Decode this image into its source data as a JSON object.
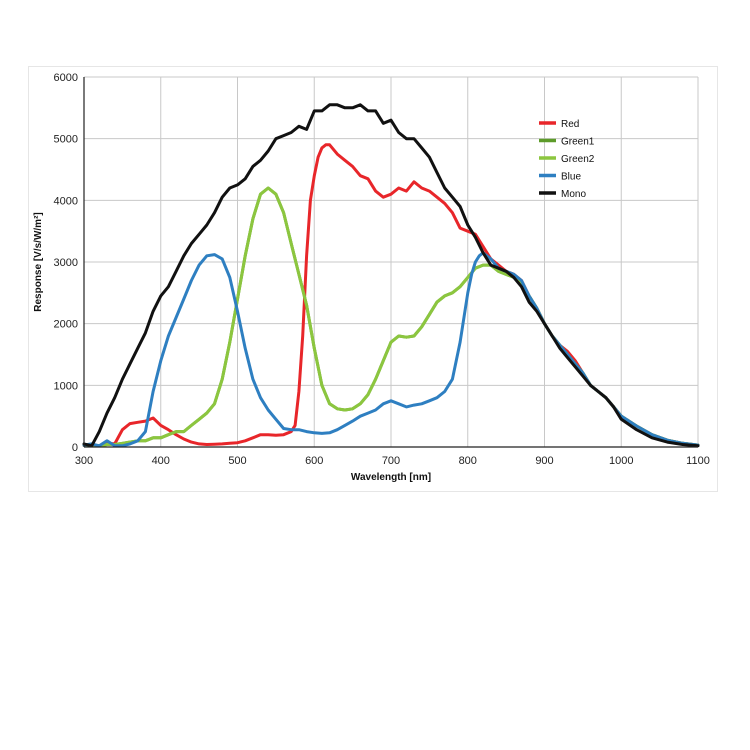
{
  "chart_data": {
    "type": "line",
    "xlabel": "Wavelength [nm]",
    "ylabel": "Response [V/s/W/m²]",
    "xlim": [
      300,
      1100
    ],
    "ylim": [
      0,
      6000
    ],
    "xticks": [
      300,
      400,
      500,
      600,
      700,
      800,
      900,
      1000,
      1100
    ],
    "yticks": [
      0,
      1000,
      2000,
      3000,
      4000,
      5000,
      6000
    ],
    "grid": true,
    "legend_position": "top-right",
    "series": [
      {
        "name": "Red",
        "color": "#e8262a",
        "x": [
          300,
          310,
          320,
          330,
          340,
          350,
          360,
          370,
          380,
          390,
          400,
          410,
          420,
          430,
          440,
          450,
          460,
          470,
          480,
          490,
          500,
          510,
          520,
          530,
          540,
          550,
          560,
          570,
          575,
          580,
          585,
          590,
          595,
          600,
          605,
          610,
          615,
          620,
          630,
          640,
          650,
          660,
          670,
          680,
          690,
          700,
          710,
          720,
          730,
          740,
          750,
          760,
          770,
          780,
          790,
          800,
          810,
          820,
          830,
          840,
          850,
          860,
          870,
          880,
          890,
          900,
          910,
          920,
          930,
          940,
          950,
          960,
          970,
          980,
          990,
          1000,
          1020,
          1040,
          1060,
          1080,
          1100
        ],
        "values": [
          30,
          20,
          20,
          60,
          50,
          280,
          380,
          400,
          420,
          470,
          350,
          280,
          200,
          130,
          80,
          50,
          40,
          45,
          50,
          60,
          70,
          100,
          150,
          200,
          200,
          190,
          200,
          250,
          350,
          900,
          1800,
          3100,
          4000,
          4400,
          4700,
          4850,
          4900,
          4900,
          4750,
          4650,
          4550,
          4400,
          4350,
          4150,
          4050,
          4100,
          4200,
          4150,
          4300,
          4200,
          4150,
          4050,
          3950,
          3800,
          3550,
          3500,
          3450,
          3250,
          3050,
          2950,
          2850,
          2800,
          2700,
          2450,
          2250,
          2000,
          1800,
          1650,
          1550,
          1400,
          1200,
          1000,
          900,
          800,
          650,
          500,
          340,
          200,
          110,
          60,
          30
        ]
      },
      {
        "name": "Green1",
        "color": "#5d9b2a",
        "x": [
          300,
          310,
          320,
          330,
          340,
          350,
          360,
          370,
          380,
          390,
          400,
          410,
          420,
          430,
          440,
          450,
          460,
          470,
          480,
          490,
          500,
          510,
          520,
          530,
          540,
          550,
          560,
          570,
          580,
          590,
          600,
          610,
          620,
          630,
          640,
          650,
          660,
          670,
          680,
          690,
          700,
          710,
          720,
          730,
          740,
          750,
          760,
          770,
          780,
          790,
          800,
          810,
          820,
          830,
          840,
          850,
          860,
          870,
          880,
          890,
          900,
          910,
          920,
          930,
          940,
          950,
          960,
          970,
          980,
          990,
          1000,
          1020,
          1040,
          1060,
          1080,
          1100
        ],
        "values": [
          30,
          20,
          20,
          40,
          40,
          60,
          80,
          100,
          100,
          150,
          150,
          200,
          250,
          250,
          350,
          450,
          550,
          700,
          1100,
          1700,
          2400,
          3100,
          3700,
          4100,
          4200,
          4100,
          3800,
          3300,
          2800,
          2300,
          1600,
          1000,
          700,
          620,
          600,
          620,
          700,
          850,
          1100,
          1400,
          1700,
          1800,
          1780,
          1800,
          1950,
          2150,
          2350,
          2450,
          2500,
          2600,
          2750,
          2900,
          2950,
          2950,
          2850,
          2800,
          2750,
          2650,
          2450,
          2250,
          2000,
          1800,
          1650,
          1500,
          1350,
          1200,
          1000,
          900,
          800,
          650,
          500,
          340,
          200,
          110,
          60,
          30
        ]
      },
      {
        "name": "Green2",
        "color": "#8cc63f",
        "x": [
          300,
          310,
          320,
          330,
          340,
          350,
          360,
          370,
          380,
          390,
          400,
          410,
          420,
          430,
          440,
          450,
          460,
          470,
          480,
          490,
          500,
          510,
          520,
          530,
          540,
          550,
          560,
          570,
          580,
          590,
          600,
          610,
          620,
          630,
          640,
          650,
          660,
          670,
          680,
          690,
          700,
          710,
          720,
          730,
          740,
          750,
          760,
          770,
          780,
          790,
          800,
          810,
          820,
          830,
          840,
          850,
          860,
          870,
          880,
          890,
          900,
          910,
          920,
          930,
          940,
          950,
          960,
          970,
          980,
          990,
          1000,
          1020,
          1040,
          1060,
          1080,
          1100
        ],
        "values": [
          30,
          20,
          20,
          40,
          40,
          60,
          80,
          100,
          100,
          150,
          150,
          200,
          250,
          250,
          350,
          450,
          550,
          700,
          1100,
          1700,
          2400,
          3100,
          3700,
          4100,
          4200,
          4100,
          3800,
          3300,
          2800,
          2300,
          1600,
          1000,
          700,
          620,
          600,
          620,
          700,
          850,
          1100,
          1400,
          1700,
          1800,
          1780,
          1800,
          1950,
          2150,
          2350,
          2450,
          2500,
          2600,
          2750,
          2900,
          2950,
          2950,
          2850,
          2800,
          2750,
          2650,
          2450,
          2250,
          2000,
          1800,
          1650,
          1500,
          1350,
          1200,
          1000,
          900,
          800,
          650,
          500,
          340,
          200,
          110,
          60,
          30
        ]
      },
      {
        "name": "Blue",
        "color": "#2e7fc1",
        "x": [
          300,
          310,
          320,
          330,
          340,
          350,
          360,
          370,
          380,
          390,
          400,
          410,
          420,
          430,
          440,
          450,
          460,
          470,
          480,
          490,
          500,
          510,
          520,
          530,
          540,
          550,
          560,
          570,
          580,
          590,
          600,
          610,
          620,
          630,
          640,
          650,
          660,
          670,
          680,
          690,
          700,
          710,
          720,
          730,
          740,
          750,
          760,
          770,
          780,
          790,
          800,
          805,
          810,
          815,
          820,
          830,
          840,
          850,
          860,
          870,
          880,
          890,
          900,
          910,
          920,
          930,
          940,
          950,
          960,
          970,
          980,
          990,
          1000,
          1020,
          1040,
          1060,
          1080,
          1100
        ],
        "values": [
          30,
          50,
          20,
          100,
          20,
          20,
          50,
          100,
          250,
          900,
          1400,
          1800,
          2100,
          2400,
          2700,
          2950,
          3100,
          3120,
          3050,
          2750,
          2200,
          1600,
          1100,
          800,
          600,
          450,
          300,
          280,
          280,
          250,
          230,
          220,
          230,
          280,
          350,
          420,
          500,
          550,
          600,
          700,
          750,
          700,
          650,
          680,
          700,
          750,
          800,
          900,
          1100,
          1700,
          2500,
          2800,
          3000,
          3100,
          3150,
          3050,
          2900,
          2850,
          2800,
          2700,
          2450,
          2250,
          2000,
          1800,
          1650,
          1500,
          1350,
          1200,
          1000,
          900,
          800,
          650,
          500,
          340,
          200,
          110,
          60,
          30
        ]
      },
      {
        "name": "Mono",
        "color": "#111111",
        "x": [
          300,
          310,
          320,
          330,
          340,
          350,
          360,
          370,
          380,
          390,
          400,
          410,
          420,
          430,
          440,
          450,
          460,
          470,
          480,
          490,
          500,
          510,
          520,
          530,
          540,
          550,
          560,
          570,
          580,
          590,
          600,
          610,
          620,
          630,
          640,
          650,
          660,
          670,
          680,
          690,
          700,
          710,
          720,
          730,
          740,
          750,
          760,
          770,
          780,
          790,
          800,
          810,
          820,
          830,
          840,
          850,
          860,
          870,
          880,
          890,
          900,
          910,
          920,
          930,
          940,
          950,
          960,
          970,
          980,
          990,
          1000,
          1020,
          1040,
          1060,
          1080,
          1100
        ],
        "values": [
          50,
          20,
          250,
          550,
          800,
          1100,
          1350,
          1600,
          1850,
          2200,
          2450,
          2600,
          2850,
          3100,
          3300,
          3450,
          3600,
          3800,
          4050,
          4200,
          4250,
          4350,
          4550,
          4650,
          4800,
          5000,
          5050,
          5100,
          5200,
          5150,
          5450,
          5450,
          5550,
          5550,
          5500,
          5500,
          5550,
          5450,
          5450,
          5250,
          5300,
          5100,
          5000,
          5000,
          4850,
          4700,
          4450,
          4200,
          4050,
          3900,
          3600,
          3400,
          3150,
          2950,
          2900,
          2850,
          2750,
          2600,
          2350,
          2200,
          2000,
          1800,
          1600,
          1450,
          1300,
          1150,
          1000,
          900,
          800,
          650,
          450,
          280,
          150,
          80,
          40,
          20
        ]
      }
    ]
  }
}
